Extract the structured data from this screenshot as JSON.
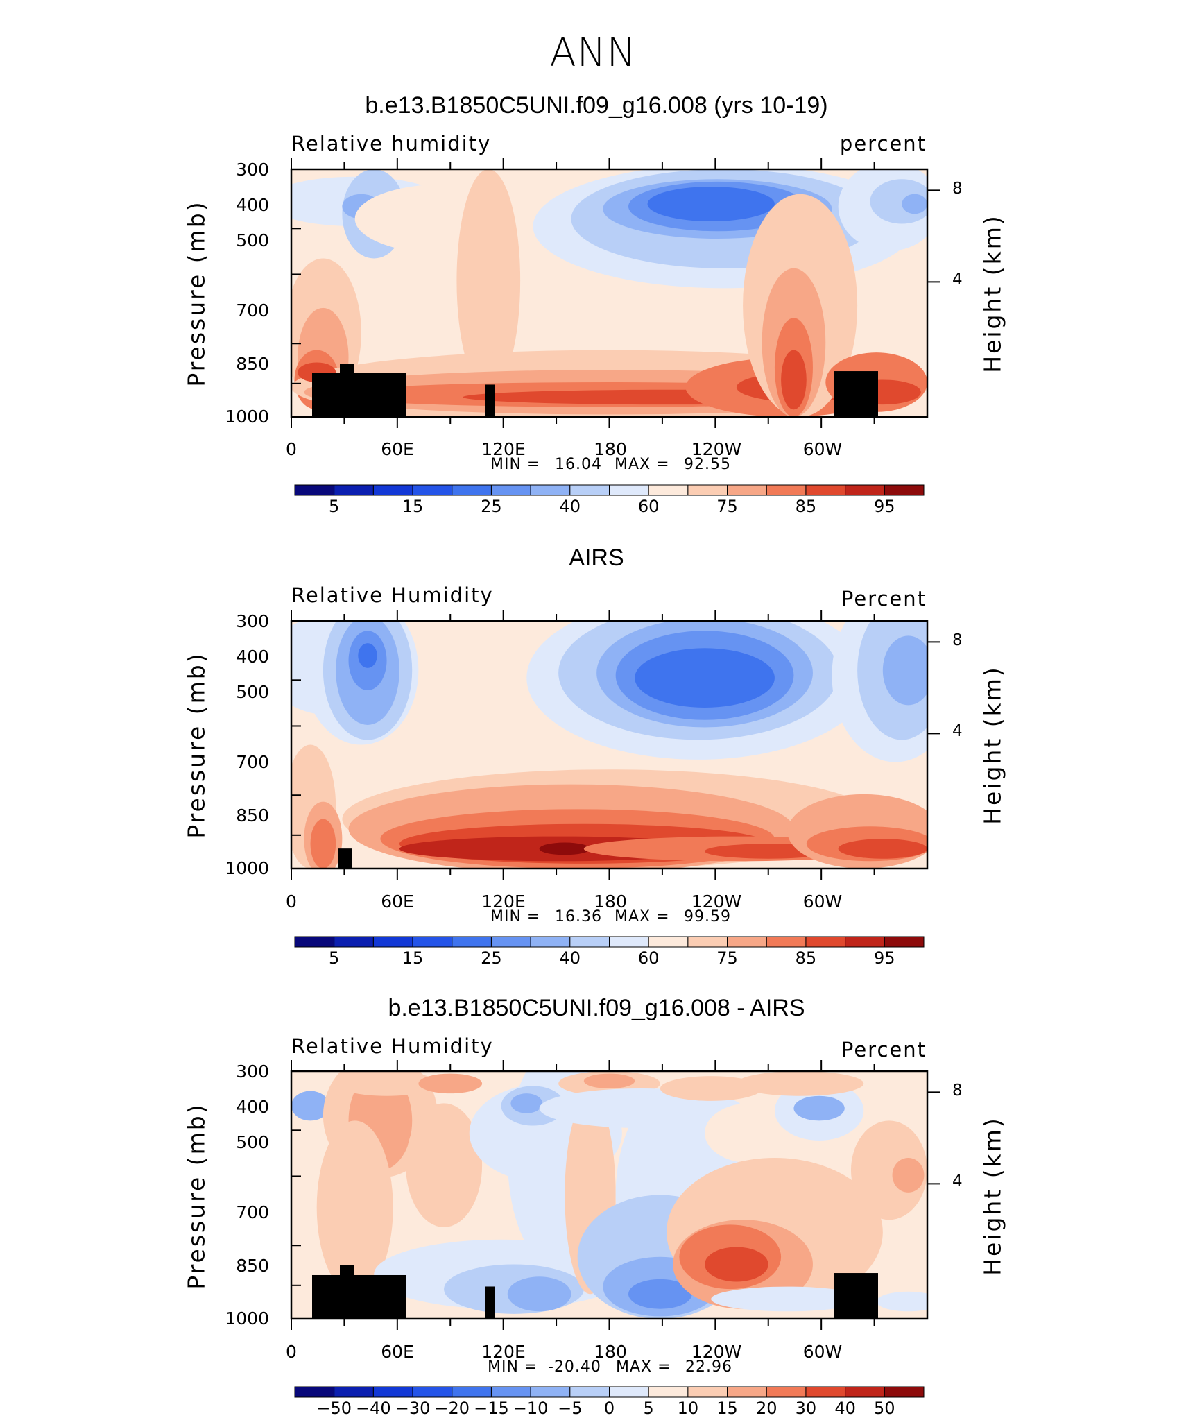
{
  "figure_title": "ANN",
  "chart_data": [
    {
      "type": "heatmap",
      "title": "b.e13.B1850C5UNI.f09_g16.008 (yrs 10-19)",
      "left_label": "Relative  humidity",
      "right_label": "percent",
      "xlabel": "",
      "ylabel": "Pressure  (mb)",
      "ylabel_right": "Height  (km)",
      "x_ticks": [
        "0",
        "60E",
        "120E",
        "180",
        "120W",
        "60W"
      ],
      "y_ticks": [
        "300",
        "400",
        "500",
        "700",
        "850",
        "1000"
      ],
      "height_ticks": [
        "8",
        "4"
      ],
      "min_label": "MIN =",
      "min_value": "16.04",
      "max_label": "MAX =",
      "max_value": "92.55",
      "colorbar_labels": [
        "5",
        "15",
        "25",
        "40",
        "60",
        "75",
        "85",
        "95"
      ]
    },
    {
      "type": "heatmap",
      "title": "AIRS",
      "left_label": "Relative  Humidity",
      "right_label": "Percent",
      "xlabel": "",
      "ylabel": "Pressure  (mb)",
      "ylabel_right": "Height  (km)",
      "x_ticks": [
        "0",
        "60E",
        "120E",
        "180",
        "120W",
        "60W"
      ],
      "y_ticks": [
        "300",
        "400",
        "500",
        "700",
        "850",
        "1000"
      ],
      "height_ticks": [
        "8",
        "4"
      ],
      "min_label": "MIN =",
      "min_value": "16.36",
      "max_label": "MAX =",
      "max_value": "99.59",
      "colorbar_labels": [
        "5",
        "15",
        "25",
        "40",
        "60",
        "75",
        "85",
        "95"
      ]
    },
    {
      "type": "heatmap",
      "title": "b.e13.B1850C5UNI.f09_g16.008 - AIRS",
      "left_label": "Relative  Humidity",
      "right_label": "Percent",
      "xlabel": "",
      "ylabel": "Pressure  (mb)",
      "ylabel_right": "Height  (km)",
      "x_ticks": [
        "0",
        "60E",
        "120E",
        "180",
        "120W",
        "60W"
      ],
      "y_ticks": [
        "300",
        "400",
        "500",
        "700",
        "850",
        "1000"
      ],
      "height_ticks": [
        "8",
        "4"
      ],
      "min_label": "MIN =",
      "min_value": "-20.40",
      "max_label": "MAX =",
      "max_value": "22.96",
      "colorbar_labels": [
        "-50",
        "-40",
        "-30",
        "-20",
        "-15",
        "-10",
        "-5",
        "0",
        "5",
        "10",
        "15",
        "20",
        "30",
        "40",
        "50"
      ]
    }
  ],
  "colors": {
    "palette16": [
      "#08087a",
      "#0b1fb0",
      "#1238d6",
      "#2454e8",
      "#3f74ee",
      "#6693f2",
      "#8fb2f5",
      "#b8cff7",
      "#dfe9fb",
      "#fdeadc",
      "#fbcdb3",
      "#f7a787",
      "#f17a57",
      "#e0492e",
      "#c0251a",
      "#8d0b0b"
    ],
    "land": "#000000"
  }
}
